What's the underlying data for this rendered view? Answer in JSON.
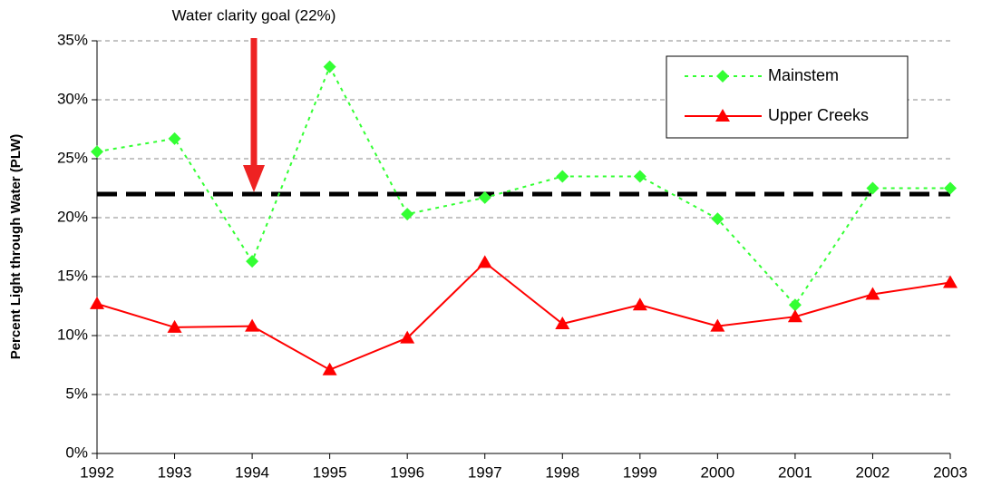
{
  "chart_data": {
    "type": "line",
    "annotation": "Water clarity goal (22%)",
    "goal": 22,
    "ylabel": "Percent Light through Water (PLW)",
    "x": [
      1992,
      1993,
      1994,
      1995,
      1996,
      1997,
      1998,
      1999,
      2000,
      2001,
      2002,
      2003
    ],
    "xlim": [
      1992,
      2003
    ],
    "xticks": [
      1992,
      1993,
      1994,
      1995,
      1996,
      1997,
      1998,
      1999,
      2000,
      2001,
      2002,
      2003
    ],
    "ylim": [
      0,
      35
    ],
    "yticks": [
      {
        "value": 0,
        "label": "0%"
      },
      {
        "value": 5,
        "label": "5%"
      },
      {
        "value": 10,
        "label": "10%"
      },
      {
        "value": 15,
        "label": "15%"
      },
      {
        "value": 20,
        "label": "20%"
      },
      {
        "value": 25,
        "label": "25%"
      },
      {
        "value": 30,
        "label": "30%"
      },
      {
        "value": 35,
        "label": "35%"
      }
    ],
    "grid": true,
    "legend": "upper right",
    "series": [
      {
        "name": "Mainstem",
        "color": "#33ff33",
        "marker": "diamond",
        "linestyle": "dotted",
        "values": [
          25.6,
          26.7,
          16.3,
          32.8,
          20.3,
          21.7,
          23.5,
          23.5,
          19.9,
          12.6,
          22.5,
          22.5
        ]
      },
      {
        "name": "Upper Creeks",
        "color": "#ff0000",
        "marker": "triangle",
        "linestyle": "solid",
        "values": [
          12.7,
          10.7,
          10.8,
          7.1,
          9.8,
          16.2,
          11.0,
          12.6,
          10.8,
          11.6,
          13.5,
          14.5
        ]
      }
    ]
  }
}
